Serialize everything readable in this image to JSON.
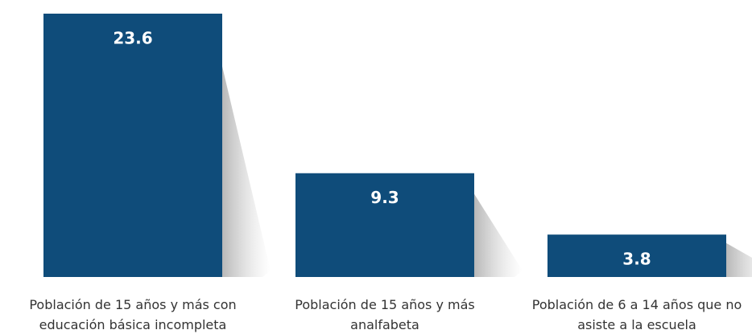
{
  "chart_data": {
    "type": "bar",
    "categories": [
      "Población de 15 años y más con educación básica incompleta",
      "Población de 15 años y más analfabeta",
      "Población de 6 a 14 años que no asiste a la escuela"
    ],
    "values": [
      23.6,
      9.3,
      3.8
    ],
    "color": "#0f4c7a"
  }
}
